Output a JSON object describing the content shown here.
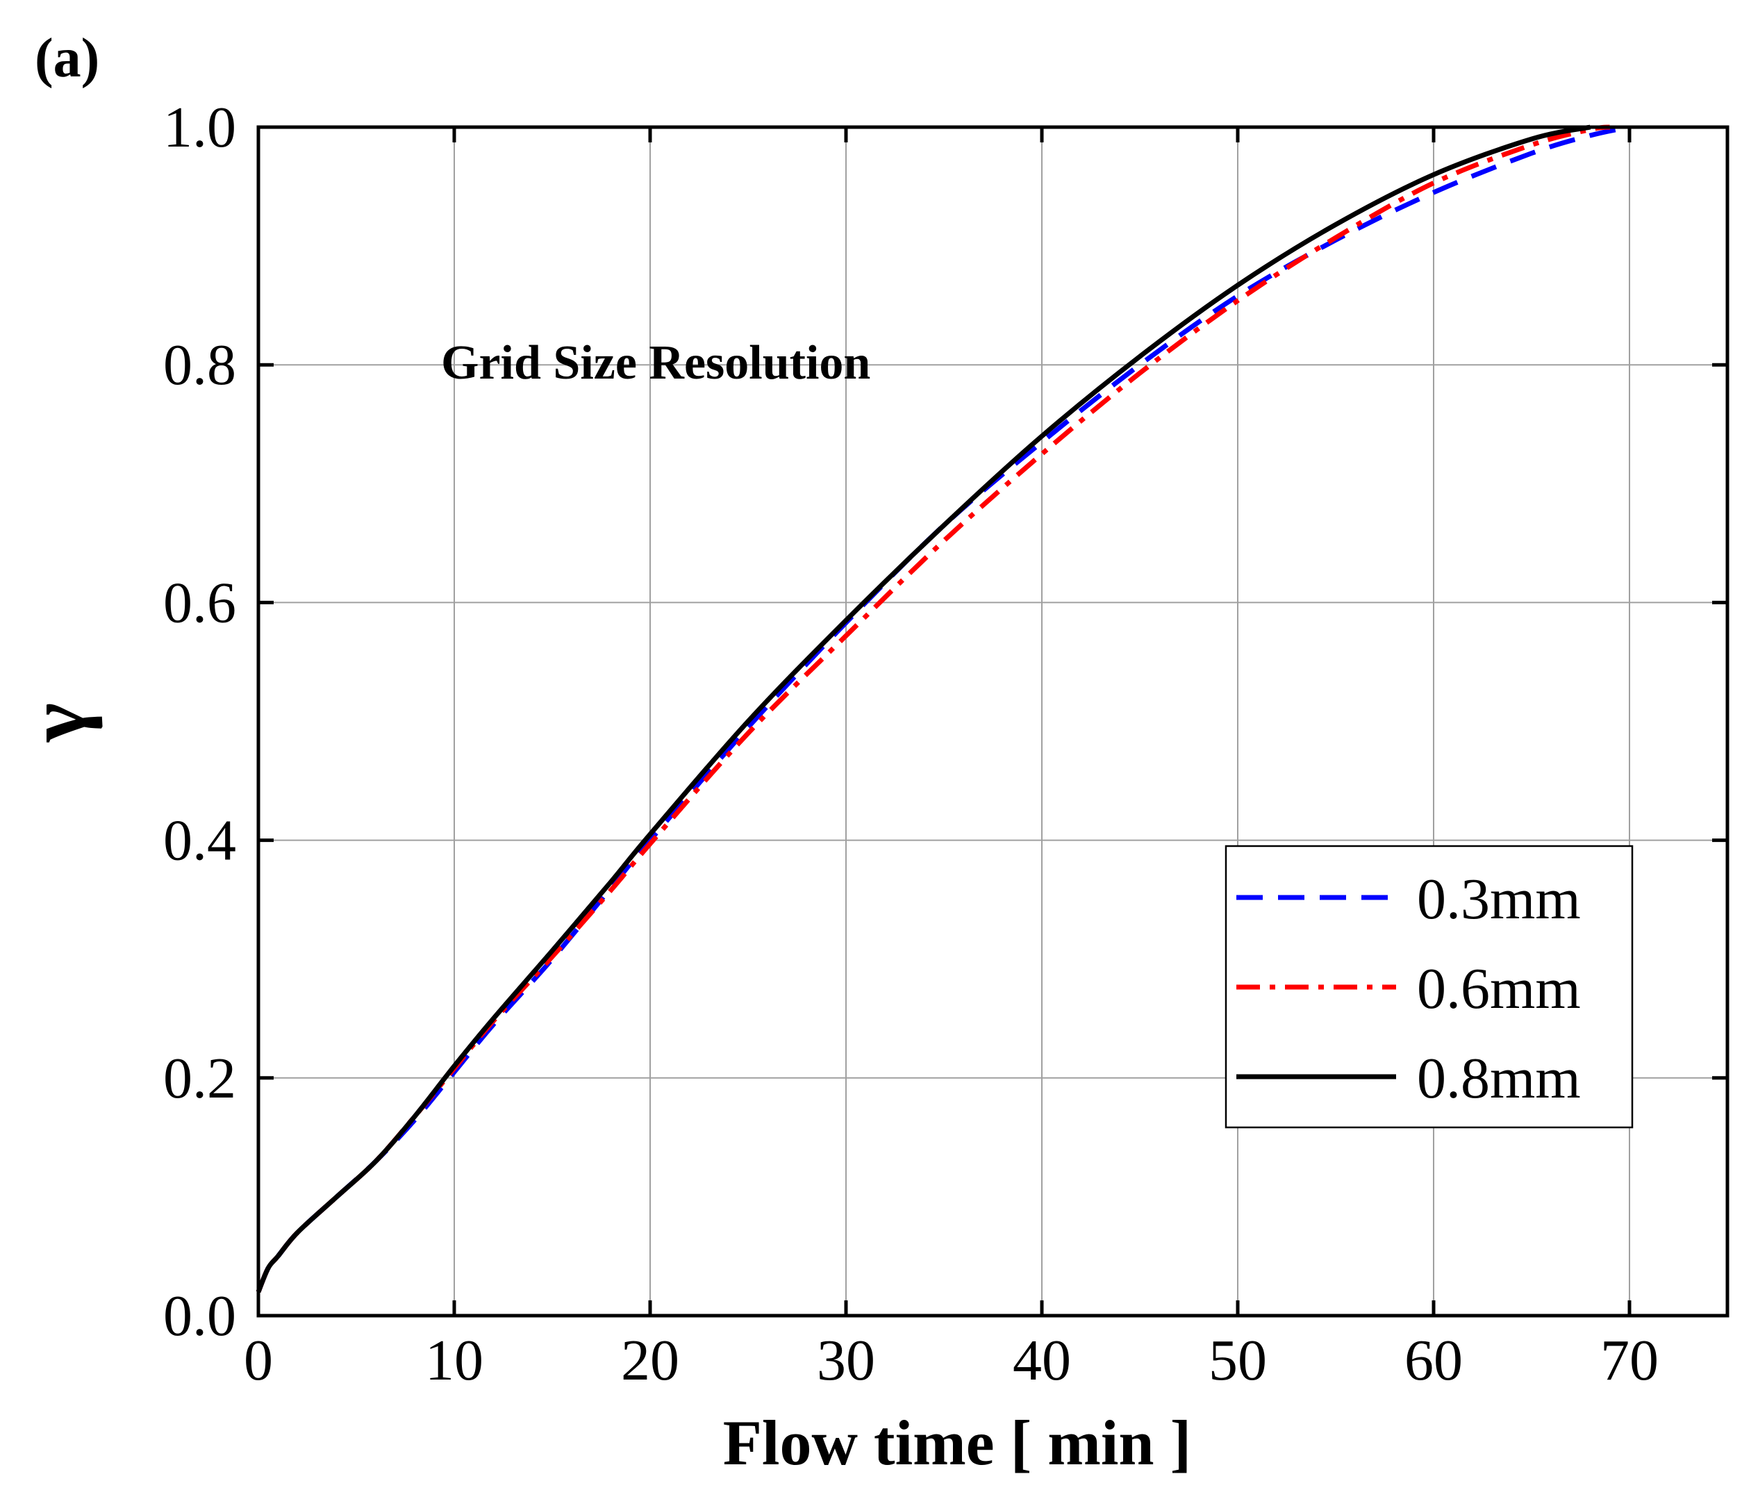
{
  "chart_data": {
    "type": "line",
    "panel_label": "(a)",
    "annotation": "Grid Size Resolution",
    "xlabel": "Flow time [ min ]",
    "ylabel": "γ",
    "xlim": [
      0,
      75
    ],
    "ylim": [
      0,
      1.0
    ],
    "xticks": [
      0,
      10,
      20,
      30,
      40,
      50,
      60,
      70
    ],
    "yticks": [
      0.0,
      0.2,
      0.4,
      0.6,
      0.8,
      1.0
    ],
    "xtick_labels": [
      "0",
      "10",
      "20",
      "30",
      "40",
      "50",
      "60",
      "70"
    ],
    "ytick_labels": [
      "0.0",
      "0.2",
      "0.4",
      "0.6",
      "0.8",
      "1.0"
    ],
    "grid": true,
    "legend_position": "lower-right",
    "series": [
      {
        "name": "0.3mm",
        "color": "#0000ff",
        "style": "dashed",
        "x": [
          0,
          0.5,
          1,
          2,
          4,
          6,
          8,
          10,
          12,
          15,
          18,
          20,
          25,
          30,
          35,
          40,
          45,
          50,
          55,
          60,
          65,
          68,
          70
        ],
        "y": [
          0.02,
          0.04,
          0.05,
          0.07,
          0.1,
          0.13,
          0.165,
          0.205,
          0.245,
          0.3,
          0.36,
          0.4,
          0.495,
          0.583,
          0.665,
          0.735,
          0.8,
          0.858,
          0.905,
          0.945,
          0.978,
          0.993,
          1.0
        ]
      },
      {
        "name": "0.6mm",
        "color": "#ff0000",
        "style": "dashdot",
        "x": [
          0,
          0.5,
          1,
          2,
          4,
          6,
          8,
          10,
          12,
          15,
          18,
          20,
          25,
          30,
          35,
          40,
          45,
          50,
          55,
          60,
          65,
          68,
          69
        ],
        "y": [
          0.02,
          0.04,
          0.05,
          0.07,
          0.1,
          0.13,
          0.168,
          0.208,
          0.248,
          0.302,
          0.358,
          0.397,
          0.49,
          0.572,
          0.652,
          0.725,
          0.793,
          0.854,
          0.907,
          0.953,
          0.985,
          0.998,
          1.0
        ]
      },
      {
        "name": "0.8mm",
        "color": "#000000",
        "style": "solid",
        "x": [
          0,
          0.5,
          1,
          2,
          4,
          6,
          8,
          10,
          12,
          15,
          18,
          20,
          25,
          30,
          35,
          40,
          45,
          50,
          55,
          60,
          65,
          68
        ],
        "y": [
          0.02,
          0.04,
          0.05,
          0.07,
          0.1,
          0.13,
          0.168,
          0.21,
          0.25,
          0.307,
          0.365,
          0.405,
          0.5,
          0.585,
          0.665,
          0.74,
          0.807,
          0.867,
          0.918,
          0.96,
          0.99,
          1.0
        ]
      }
    ]
  }
}
